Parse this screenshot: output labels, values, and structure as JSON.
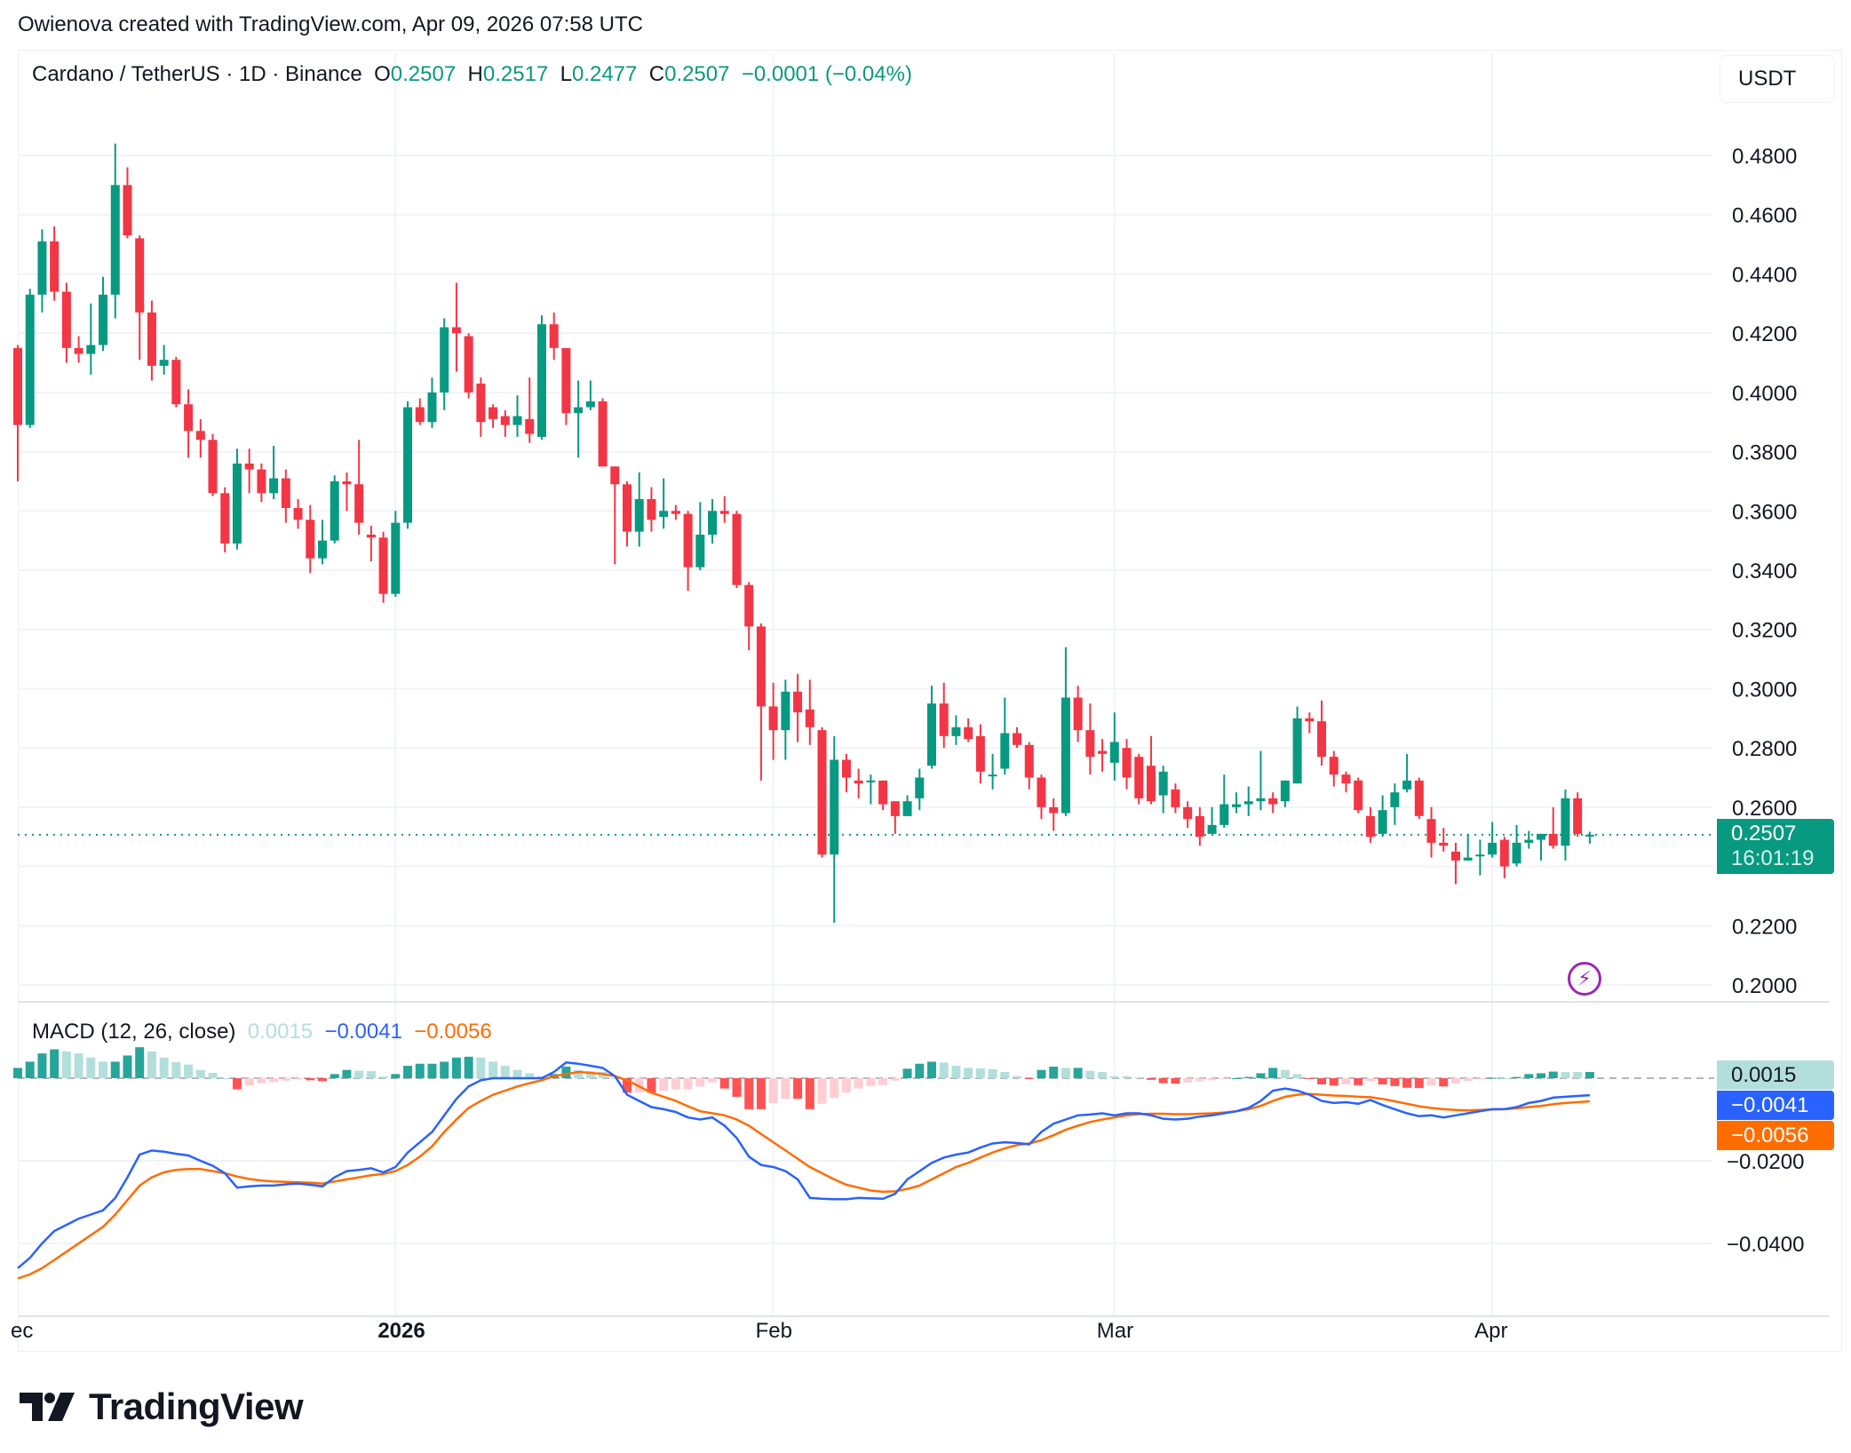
{
  "attribution": "Owienova created with TradingView.com, Apr 09, 2026 07:58 UTC",
  "symbol": {
    "title": "Cardano / TetherUS · 1D · Binance",
    "open_label": "O",
    "open": "0.2507",
    "high_label": "H",
    "high": "0.2517",
    "low_label": "L",
    "low": "0.2477",
    "close_label": "C",
    "close": "0.2507",
    "change": "−0.0001 (−0.04%)"
  },
  "currency_button": "USDT",
  "price_axis": {
    "labels": [
      "0.4800",
      "0.4600",
      "0.4400",
      "0.4200",
      "0.4000",
      "0.3800",
      "0.3600",
      "0.3400",
      "0.3200",
      "0.3000",
      "0.2800",
      "0.2600",
      "0.2200",
      "0.2000"
    ]
  },
  "last_price": {
    "value": "0.2507",
    "countdown": "16:01:19",
    "color": "#089981"
  },
  "time_axis": {
    "labels": [
      "Dec",
      "2026",
      "Feb",
      "Mar",
      "Apr"
    ]
  },
  "macd": {
    "title": "MACD (12, 26, close)",
    "histogram_value": "0.0015",
    "macd_value": "−0.0041",
    "signal_value": "−0.0056",
    "axis_labels": [
      "−0.0200",
      "−0.0400"
    ],
    "colors": {
      "macd": "#2962ff",
      "signal": "#ff6d00",
      "hist_up_strong": "#26a69a",
      "hist_up_weak": "#b2dfdb",
      "hist_down_strong": "#ff5252",
      "hist_down_weak": "#ffcdd2"
    }
  },
  "colors": {
    "up": "#089981",
    "down": "#f23645",
    "grid": "#f0f3fa"
  },
  "branding": {
    "logo_text": "TradingView"
  },
  "chart_data": {
    "type": "candlestick",
    "title": "Cardano / TetherUS · 1D · Binance",
    "xlabel": "",
    "ylabel": "USDT",
    "ylim": [
      0.19,
      0.5
    ],
    "x_start": "2025-12-01",
    "x_end": "2026-04-09",
    "time_ticks": [
      "Dec",
      "2026",
      "Feb",
      "Mar",
      "Apr"
    ],
    "price_ticks": [
      0.2,
      0.22,
      0.24,
      0.26,
      0.28,
      0.3,
      0.32,
      0.34,
      0.36,
      0.38,
      0.4,
      0.42,
      0.44,
      0.46,
      0.48
    ],
    "candles": [
      [
        0.415,
        0.416,
        0.37,
        0.389
      ],
      [
        0.389,
        0.435,
        0.388,
        0.433
      ],
      [
        0.433,
        0.455,
        0.427,
        0.451
      ],
      [
        0.451,
        0.456,
        0.431,
        0.434
      ],
      [
        0.434,
        0.437,
        0.41,
        0.415
      ],
      [
        0.415,
        0.419,
        0.41,
        0.413
      ],
      [
        0.413,
        0.43,
        0.406,
        0.416
      ],
      [
        0.416,
        0.439,
        0.414,
        0.433
      ],
      [
        0.433,
        0.484,
        0.425,
        0.47
      ],
      [
        0.47,
        0.476,
        0.452,
        0.453
      ],
      [
        0.452,
        0.453,
        0.411,
        0.427
      ],
      [
        0.427,
        0.431,
        0.404,
        0.409
      ],
      [
        0.409,
        0.416,
        0.406,
        0.411
      ],
      [
        0.411,
        0.412,
        0.395,
        0.396
      ],
      [
        0.396,
        0.401,
        0.378,
        0.387
      ],
      [
        0.387,
        0.391,
        0.378,
        0.384
      ],
      [
        0.384,
        0.386,
        0.365,
        0.366
      ],
      [
        0.366,
        0.368,
        0.346,
        0.349
      ],
      [
        0.349,
        0.381,
        0.347,
        0.376
      ],
      [
        0.376,
        0.381,
        0.366,
        0.374
      ],
      [
        0.374,
        0.376,
        0.363,
        0.366
      ],
      [
        0.366,
        0.382,
        0.364,
        0.371
      ],
      [
        0.371,
        0.374,
        0.356,
        0.361
      ],
      [
        0.361,
        0.364,
        0.354,
        0.357
      ],
      [
        0.357,
        0.362,
        0.339,
        0.344
      ],
      [
        0.344,
        0.357,
        0.342,
        0.35
      ],
      [
        0.35,
        0.372,
        0.349,
        0.37
      ],
      [
        0.37,
        0.373,
        0.36,
        0.369
      ],
      [
        0.369,
        0.384,
        0.352,
        0.356
      ],
      [
        0.352,
        0.355,
        0.343,
        0.351
      ],
      [
        0.351,
        0.353,
        0.329,
        0.332
      ],
      [
        0.332,
        0.36,
        0.331,
        0.356
      ],
      [
        0.356,
        0.397,
        0.354,
        0.395
      ],
      [
        0.395,
        0.398,
        0.389,
        0.39
      ],
      [
        0.39,
        0.405,
        0.388,
        0.4
      ],
      [
        0.4,
        0.425,
        0.394,
        0.422
      ],
      [
        0.422,
        0.437,
        0.407,
        0.42
      ],
      [
        0.419,
        0.42,
        0.398,
        0.4
      ],
      [
        0.403,
        0.405,
        0.385,
        0.39
      ],
      [
        0.395,
        0.396,
        0.388,
        0.391
      ],
      [
        0.392,
        0.394,
        0.385,
        0.389
      ],
      [
        0.389,
        0.399,
        0.385,
        0.392
      ],
      [
        0.391,
        0.405,
        0.383,
        0.386
      ],
      [
        0.385,
        0.426,
        0.384,
        0.423
      ],
      [
        0.423,
        0.427,
        0.411,
        0.415
      ],
      [
        0.415,
        0.415,
        0.389,
        0.393
      ],
      [
        0.393,
        0.404,
        0.378,
        0.395
      ],
      [
        0.395,
        0.404,
        0.394,
        0.397
      ],
      [
        0.397,
        0.398,
        0.375,
        0.375
      ],
      [
        0.375,
        0.375,
        0.342,
        0.369
      ],
      [
        0.369,
        0.37,
        0.348,
        0.353
      ],
      [
        0.353,
        0.373,
        0.348,
        0.364
      ],
      [
        0.364,
        0.368,
        0.353,
        0.357
      ],
      [
        0.358,
        0.371,
        0.354,
        0.36
      ],
      [
        0.36,
        0.362,
        0.357,
        0.359
      ],
      [
        0.359,
        0.36,
        0.333,
        0.341
      ],
      [
        0.341,
        0.363,
        0.34,
        0.352
      ],
      [
        0.352,
        0.364,
        0.349,
        0.36
      ],
      [
        0.36,
        0.365,
        0.356,
        0.359
      ],
      [
        0.359,
        0.36,
        0.334,
        0.335
      ],
      [
        0.335,
        0.336,
        0.313,
        0.321
      ],
      [
        0.321,
        0.322,
        0.269,
        0.294
      ],
      [
        0.294,
        0.302,
        0.276,
        0.286
      ],
      [
        0.286,
        0.303,
        0.276,
        0.299
      ],
      [
        0.299,
        0.305,
        0.282,
        0.292
      ],
      [
        0.293,
        0.303,
        0.281,
        0.287
      ],
      [
        0.286,
        0.287,
        0.243,
        0.244
      ],
      [
        0.244,
        0.284,
        0.221,
        0.276
      ],
      [
        0.276,
        0.278,
        0.265,
        0.27
      ],
      [
        0.269,
        0.273,
        0.263,
        0.268
      ],
      [
        0.269,
        0.271,
        0.261,
        0.269
      ],
      [
        0.269,
        0.269,
        0.259,
        0.261
      ],
      [
        0.262,
        0.262,
        0.251,
        0.257
      ],
      [
        0.257,
        0.264,
        0.257,
        0.262
      ],
      [
        0.263,
        0.273,
        0.259,
        0.27
      ],
      [
        0.274,
        0.301,
        0.273,
        0.295
      ],
      [
        0.295,
        0.302,
        0.28,
        0.284
      ],
      [
        0.284,
        0.291,
        0.281,
        0.287
      ],
      [
        0.287,
        0.29,
        0.282,
        0.283
      ],
      [
        0.284,
        0.288,
        0.268,
        0.272
      ],
      [
        0.271,
        0.278,
        0.266,
        0.271
      ],
      [
        0.273,
        0.297,
        0.271,
        0.285
      ],
      [
        0.285,
        0.287,
        0.28,
        0.281
      ],
      [
        0.281,
        0.282,
        0.266,
        0.27
      ],
      [
        0.27,
        0.271,
        0.256,
        0.26
      ],
      [
        0.26,
        0.263,
        0.252,
        0.258
      ],
      [
        0.258,
        0.314,
        0.257,
        0.297
      ],
      [
        0.297,
        0.301,
        0.282,
        0.286
      ],
      [
        0.286,
        0.295,
        0.271,
        0.277
      ],
      [
        0.279,
        0.283,
        0.272,
        0.278
      ],
      [
        0.275,
        0.292,
        0.269,
        0.282
      ],
      [
        0.28,
        0.283,
        0.266,
        0.27
      ],
      [
        0.277,
        0.278,
        0.261,
        0.263
      ],
      [
        0.274,
        0.284,
        0.261,
        0.262
      ],
      [
        0.264,
        0.274,
        0.258,
        0.272
      ],
      [
        0.266,
        0.268,
        0.258,
        0.26
      ],
      [
        0.26,
        0.262,
        0.253,
        0.256
      ],
      [
        0.257,
        0.26,
        0.247,
        0.25
      ],
      [
        0.251,
        0.26,
        0.251,
        0.254
      ],
      [
        0.254,
        0.271,
        0.253,
        0.261
      ],
      [
        0.26,
        0.265,
        0.258,
        0.261
      ],
      [
        0.261,
        0.267,
        0.257,
        0.262
      ],
      [
        0.262,
        0.279,
        0.259,
        0.263
      ],
      [
        0.263,
        0.265,
        0.258,
        0.261
      ],
      [
        0.262,
        0.269,
        0.26,
        0.269
      ],
      [
        0.268,
        0.294,
        0.268,
        0.29
      ],
      [
        0.29,
        0.292,
        0.285,
        0.289
      ],
      [
        0.289,
        0.296,
        0.274,
        0.277
      ],
      [
        0.277,
        0.279,
        0.267,
        0.271
      ],
      [
        0.271,
        0.272,
        0.265,
        0.268
      ],
      [
        0.269,
        0.27,
        0.258,
        0.259
      ],
      [
        0.257,
        0.26,
        0.248,
        0.25
      ],
      [
        0.251,
        0.264,
        0.25,
        0.259
      ],
      [
        0.26,
        0.268,
        0.254,
        0.265
      ],
      [
        0.266,
        0.278,
        0.265,
        0.269
      ],
      [
        0.269,
        0.27,
        0.256,
        0.257
      ],
      [
        0.256,
        0.26,
        0.243,
        0.248
      ],
      [
        0.248,
        0.253,
        0.245,
        0.247
      ],
      [
        0.245,
        0.248,
        0.234,
        0.242
      ],
      [
        0.242,
        0.251,
        0.242,
        0.243
      ],
      [
        0.244,
        0.249,
        0.237,
        0.244
      ],
      [
        0.244,
        0.255,
        0.243,
        0.248
      ],
      [
        0.249,
        0.25,
        0.236,
        0.24
      ],
      [
        0.241,
        0.254,
        0.24,
        0.248
      ],
      [
        0.248,
        0.252,
        0.246,
        0.249
      ],
      [
        0.249,
        0.251,
        0.242,
        0.251
      ],
      [
        0.251,
        0.26,
        0.246,
        0.247
      ],
      [
        0.247,
        0.266,
        0.242,
        0.263
      ],
      [
        0.263,
        0.265,
        0.25,
        0.251
      ],
      [
        0.2507,
        0.2517,
        0.2477,
        0.2507
      ]
    ],
    "macd_series": {
      "macd": [
        -0.046,
        -0.0435,
        -0.04,
        -0.037,
        -0.0355,
        -0.034,
        -0.033,
        -0.032,
        -0.029,
        -0.024,
        -0.0185,
        -0.0175,
        -0.0178,
        -0.0183,
        -0.0187,
        -0.02,
        -0.0212,
        -0.023,
        -0.0265,
        -0.0262,
        -0.026,
        -0.026,
        -0.0257,
        -0.0255,
        -0.0258,
        -0.0262,
        -0.024,
        -0.0225,
        -0.0222,
        -0.0218,
        -0.0228,
        -0.0215,
        -0.018,
        -0.0155,
        -0.013,
        -0.009,
        -0.005,
        -0.002,
        -0.0005,
        0.0,
        0.0,
        0.0,
        0.0,
        0.0,
        0.0015,
        0.0038,
        0.0035,
        0.003,
        0.0025,
        0.0005,
        -0.004,
        -0.0055,
        -0.007,
        -0.0075,
        -0.0082,
        -0.0095,
        -0.01,
        -0.0095,
        -0.0115,
        -0.0145,
        -0.019,
        -0.021,
        -0.0215,
        -0.0225,
        -0.0245,
        -0.029,
        -0.0292,
        -0.0293,
        -0.0293,
        -0.029,
        -0.0291,
        -0.0292,
        -0.028,
        -0.0245,
        -0.0225,
        -0.0205,
        -0.0192,
        -0.0185,
        -0.018,
        -0.0168,
        -0.0158,
        -0.0155,
        -0.0157,
        -0.016,
        -0.013,
        -0.011,
        -0.01,
        -0.009,
        -0.0088,
        -0.0085,
        -0.009,
        -0.0085,
        -0.0085,
        -0.009,
        -0.0098,
        -0.01,
        -0.0098,
        -0.0093,
        -0.009,
        -0.0085,
        -0.008,
        -0.0072,
        -0.0055,
        -0.003,
        -0.0025,
        -0.003,
        -0.004,
        -0.0055,
        -0.006,
        -0.0058,
        -0.0062,
        -0.0053,
        -0.0065,
        -0.0075,
        -0.0085,
        -0.0092,
        -0.009,
        -0.0095,
        -0.009,
        -0.0085,
        -0.008,
        -0.0075,
        -0.0075,
        -0.007,
        -0.006,
        -0.0055,
        -0.0047,
        -0.0045,
        -0.0043,
        -0.0041
      ],
      "signal": [
        -0.0485,
        -0.0475,
        -0.046,
        -0.044,
        -0.042,
        -0.04,
        -0.038,
        -0.036,
        -0.033,
        -0.0295,
        -0.026,
        -0.024,
        -0.0228,
        -0.0222,
        -0.022,
        -0.022,
        -0.0225,
        -0.023,
        -0.0238,
        -0.0244,
        -0.0248,
        -0.025,
        -0.0251,
        -0.0252,
        -0.0253,
        -0.0255,
        -0.025,
        -0.0245,
        -0.024,
        -0.0235,
        -0.0232,
        -0.0225,
        -0.021,
        -0.019,
        -0.0165,
        -0.013,
        -0.01,
        -0.0072,
        -0.0055,
        -0.004,
        -0.003,
        -0.002,
        -0.0012,
        -0.0005,
        0.0005,
        0.001,
        0.0015,
        0.0013,
        0.001,
        0.0005,
        -0.0005,
        -0.002,
        -0.0035,
        -0.0045,
        -0.0055,
        -0.0068,
        -0.008,
        -0.0085,
        -0.009,
        -0.01,
        -0.0115,
        -0.0135,
        -0.0155,
        -0.0175,
        -0.0195,
        -0.0215,
        -0.023,
        -0.0245,
        -0.0258,
        -0.0265,
        -0.0272,
        -0.0275,
        -0.0274,
        -0.0268,
        -0.026,
        -0.0245,
        -0.023,
        -0.0215,
        -0.0205,
        -0.0192,
        -0.018,
        -0.017,
        -0.0162,
        -0.0158,
        -0.015,
        -0.0138,
        -0.0125,
        -0.0115,
        -0.0106,
        -0.01,
        -0.0095,
        -0.009,
        -0.0087,
        -0.0086,
        -0.0086,
        -0.0087,
        -0.0087,
        -0.0086,
        -0.0085,
        -0.0083,
        -0.008,
        -0.0075,
        -0.0067,
        -0.0055,
        -0.0045,
        -0.004,
        -0.0038,
        -0.004,
        -0.0042,
        -0.0043,
        -0.0045,
        -0.0046,
        -0.005,
        -0.0056,
        -0.0062,
        -0.0068,
        -0.0072,
        -0.0075,
        -0.0077,
        -0.0078,
        -0.0077,
        -0.0076,
        -0.0075,
        -0.0073,
        -0.007,
        -0.0067,
        -0.0063,
        -0.006,
        -0.0058,
        -0.0056
      ],
      "last_histogram": 0.0015
    }
  }
}
